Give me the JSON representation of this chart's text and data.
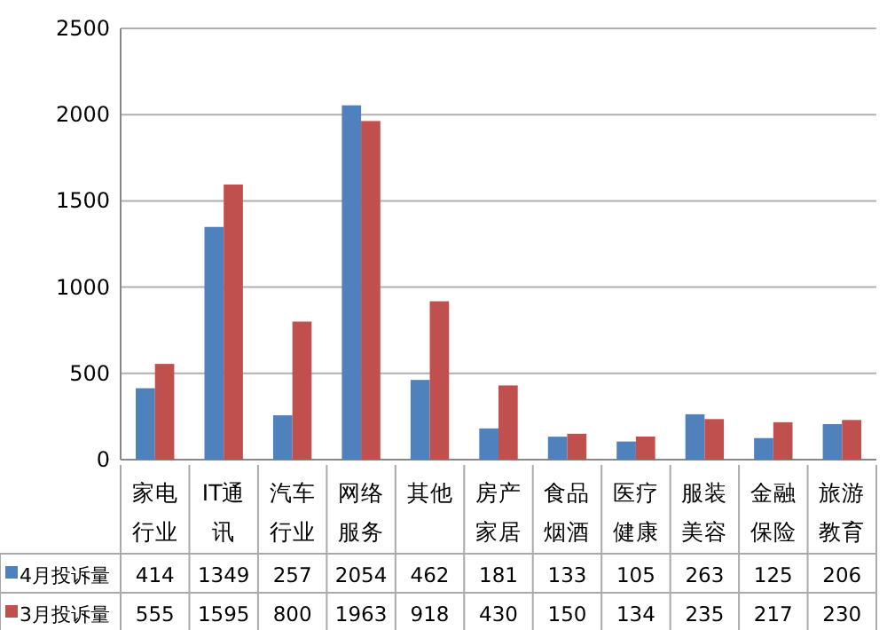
{
  "chart_data": {
    "type": "bar",
    "categories": [
      "家电行业",
      "IT通讯",
      "汽车行业",
      "网络服务",
      "其他",
      "房产家居",
      "食品烟酒",
      "医疗健康",
      "服装美容",
      "金融保险",
      "旅游教育"
    ],
    "series": [
      {
        "name": "4月投诉量",
        "color": "#4f81bd",
        "values": [
          414,
          1349,
          257,
          2054,
          462,
          181,
          133,
          105,
          263,
          125,
          206
        ]
      },
      {
        "name": "3月投诉量",
        "color": "#c0504d",
        "values": [
          555,
          1595,
          800,
          1963,
          918,
          430,
          150,
          134,
          235,
          217,
          230
        ]
      }
    ],
    "ylim": [
      0,
      2500
    ],
    "yticks": [
      0,
      500,
      1000,
      1500,
      2000,
      2500
    ],
    "grid": "y",
    "legend": "bottom",
    "data_labels": true
  }
}
